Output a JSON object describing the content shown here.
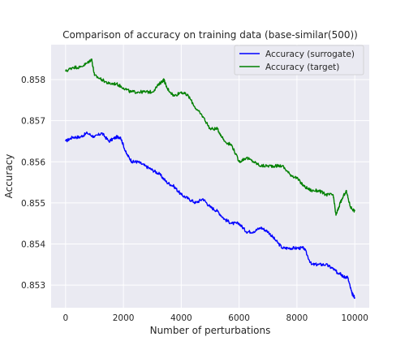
{
  "chart_data": {
    "type": "line",
    "title": "Comparison of accuracy on training data (base-similar(500))",
    "xlabel": "Number of perturbations",
    "ylabel": "Accuracy",
    "xlim": [
      -500,
      10500
    ],
    "ylim": [
      0.85245,
      0.85885
    ],
    "xticks": [
      0,
      2000,
      4000,
      6000,
      8000,
      10000
    ],
    "yticks": [
      0.853,
      0.854,
      0.855,
      0.856,
      0.857,
      0.858
    ],
    "xtick_labels": [
      "0",
      "2000",
      "4000",
      "6000",
      "8000",
      "10000"
    ],
    "ytick_labels": [
      "0.853",
      "0.854",
      "0.855",
      "0.856",
      "0.857",
      "0.858"
    ],
    "grid": true,
    "legend_position": "top-right",
    "series": [
      {
        "name": "Accuracy (surrogate)",
        "color": "#0000ff",
        "x": [
          0,
          250,
          500,
          750,
          1000,
          1250,
          1500,
          1750,
          1900,
          2100,
          2300,
          2500,
          2750,
          3000,
          3250,
          3500,
          3750,
          4000,
          4250,
          4500,
          4750,
          5000,
          5250,
          5500,
          5750,
          6000,
          6250,
          6500,
          6750,
          7000,
          7250,
          7500,
          7750,
          8000,
          8250,
          8500,
          8750,
          9000,
          9250,
          9400,
          9500,
          9600,
          9750,
          9900,
          10000
        ],
        "y": [
          0.8565,
          0.8566,
          0.8566,
          0.8567,
          0.8566,
          0.8567,
          0.8565,
          0.8566,
          0.8566,
          0.8562,
          0.856,
          0.856,
          0.8559,
          0.8558,
          0.8557,
          0.8555,
          0.8554,
          0.8552,
          0.8551,
          0.855,
          0.8551,
          0.8549,
          0.8548,
          0.8546,
          0.8545,
          0.8545,
          0.8543,
          0.8543,
          0.8544,
          0.8543,
          0.8541,
          0.8539,
          0.8539,
          0.8539,
          0.8539,
          0.8535,
          0.8535,
          0.8535,
          0.8534,
          0.8533,
          0.8533,
          0.8532,
          0.8532,
          0.8528,
          0.8527
        ]
      },
      {
        "name": "Accuracy (target)",
        "color": "#008000",
        "x": [
          0,
          250,
          500,
          750,
          900,
          1000,
          1250,
          1500,
          1750,
          2000,
          2250,
          2500,
          2750,
          3000,
          3250,
          3400,
          3500,
          3750,
          4000,
          4250,
          4500,
          4750,
          5000,
          5250,
          5500,
          5750,
          6000,
          6250,
          6500,
          6750,
          7000,
          7250,
          7500,
          7750,
          8000,
          8250,
          8500,
          8750,
          9000,
          9250,
          9350,
          9500,
          9700,
          9850,
          10000
        ],
        "y": [
          0.8582,
          0.8583,
          0.8583,
          0.8584,
          0.8585,
          0.8581,
          0.858,
          0.8579,
          0.8579,
          0.8578,
          0.8577,
          0.8577,
          0.8577,
          0.8577,
          0.8579,
          0.858,
          0.8578,
          0.8576,
          0.8577,
          0.8576,
          0.8573,
          0.8571,
          0.8568,
          0.8568,
          0.8565,
          0.8564,
          0.856,
          0.8561,
          0.856,
          0.8559,
          0.8559,
          0.8559,
          0.8559,
          0.8557,
          0.8556,
          0.8554,
          0.8553,
          0.8553,
          0.8552,
          0.8552,
          0.8547,
          0.855,
          0.8553,
          0.8549,
          0.8548
        ]
      }
    ]
  }
}
